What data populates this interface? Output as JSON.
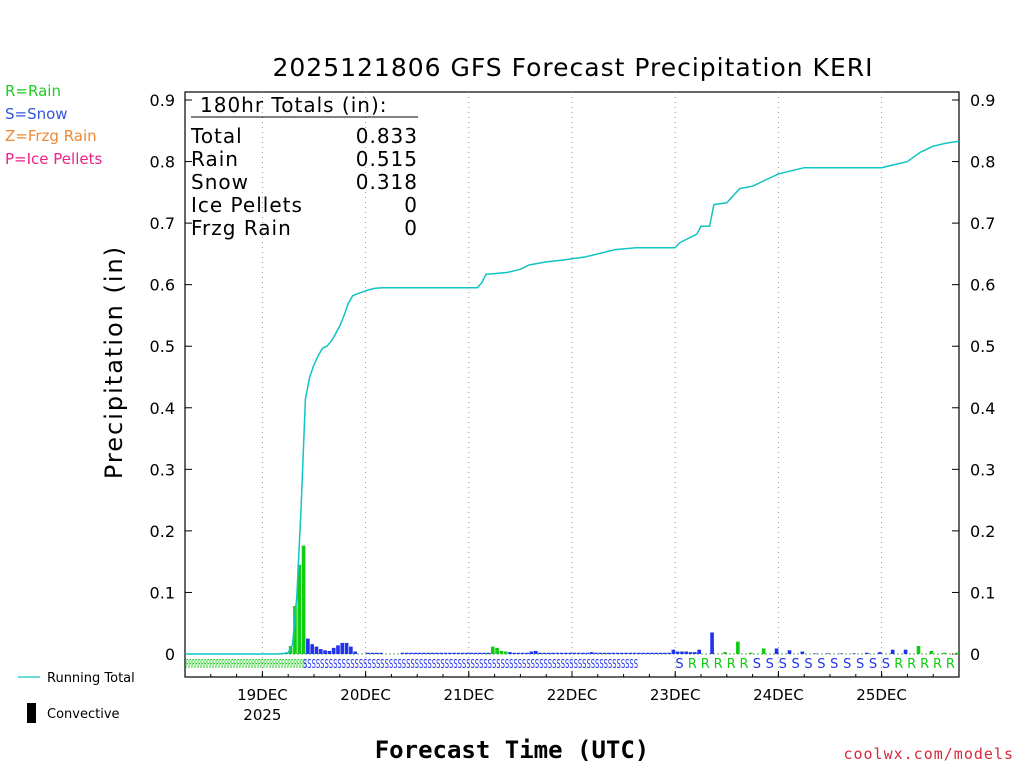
{
  "chart_data": {
    "type": "bar",
    "title": "2025121806 GFS Forecast Precipitation KERI",
    "xlabel": "Forecast Time (UTC)",
    "ylabel": "Precipitation (in)",
    "ylim": [
      0,
      0.9
    ],
    "yticks": [
      "0",
      "0.1",
      "0.2",
      "0.3",
      "0.4",
      "0.5",
      "0.6",
      "0.7",
      "0.8",
      "0.9"
    ],
    "xlim_hours": [
      0,
      180
    ],
    "x_unit": "forecast hours from 2025-12-18 06Z",
    "x_tick_labels": [
      {
        "hour": 18,
        "label": "19DEC",
        "sublabel": "2025"
      },
      {
        "hour": 42,
        "label": "20DEC",
        "sublabel": ""
      },
      {
        "hour": 66,
        "label": "21DEC",
        "sublabel": ""
      },
      {
        "hour": 90,
        "label": "22DEC",
        "sublabel": ""
      },
      {
        "hour": 114,
        "label": "23DEC",
        "sublabel": ""
      },
      {
        "hour": 138,
        "label": "24DEC",
        "sublabel": ""
      },
      {
        "hour": 162,
        "label": "25DEC",
        "sublabel": ""
      }
    ],
    "bar_series": {
      "hours": [
        24,
        25,
        26,
        27,
        28,
        29,
        30,
        31,
        32,
        33,
        34,
        35,
        36,
        37,
        38,
        39,
        40,
        43,
        44,
        45,
        46,
        51,
        52,
        53,
        54,
        55,
        56,
        57,
        58,
        59,
        60,
        61,
        62,
        63,
        64,
        65,
        66,
        67,
        68,
        69,
        70,
        71,
        72,
        73,
        74,
        75,
        76,
        77,
        78,
        79,
        80,
        81,
        82,
        83,
        84,
        85,
        86,
        87,
        88,
        89,
        90,
        91,
        92,
        93,
        94,
        95,
        96,
        97,
        98,
        99,
        100,
        101,
        102,
        103,
        104,
        105,
        106,
        107,
        108,
        109,
        110,
        111,
        112,
        113,
        114,
        115,
        116,
        117,
        118,
        119,
        120,
        123,
        126,
        129,
        132,
        135,
        138,
        141,
        144,
        147,
        150,
        153,
        156,
        159,
        162,
        165,
        168,
        171,
        174,
        177,
        180
      ],
      "values": [
        0.002,
        0.013,
        0.078,
        0.145,
        0.176,
        0.025,
        0.016,
        0.012,
        0.008,
        0.006,
        0.005,
        0.01,
        0.014,
        0.018,
        0.018,
        0.012,
        0.004,
        0.002,
        0.002,
        0.002,
        0.002,
        0.002,
        0.002,
        0.002,
        0.002,
        0.002,
        0.002,
        0.002,
        0.002,
        0.002,
        0.002,
        0.002,
        0.002,
        0.002,
        0.002,
        0.002,
        0.002,
        0.002,
        0.002,
        0.002,
        0.002,
        0.002,
        0.012,
        0.01,
        0.005,
        0.004,
        0.003,
        0.002,
        0.002,
        0.002,
        0.002,
        0.004,
        0.005,
        0.002,
        0.002,
        0.002,
        0.002,
        0.002,
        0.002,
        0.002,
        0.002,
        0.002,
        0.002,
        0.002,
        0.002,
        0.003,
        0.002,
        0.002,
        0.002,
        0.002,
        0.002,
        0.002,
        0.002,
        0.002,
        0.002,
        0.002,
        0.002,
        0.002,
        0.002,
        0.002,
        0.002,
        0.002,
        0.002,
        0.002,
        0.007,
        0.004,
        0.004,
        0.004,
        0.003,
        0.003,
        0.007,
        0.035,
        0.003,
        0.02,
        0.002,
        0.009,
        0.009,
        0.006,
        0.004,
        0.001,
        0.001,
        0.001,
        0.001,
        0.002,
        0.003,
        0.007,
        0.007,
        0.013,
        0.005,
        0.002,
        0.002
      ],
      "types": [
        "R",
        "R",
        "R",
        "R",
        "R",
        "S",
        "S",
        "S",
        "S",
        "S",
        "S",
        "S",
        "S",
        "S",
        "S",
        "S",
        "S",
        "S",
        "S",
        "S",
        "S",
        "S",
        "S",
        "S",
        "S",
        "S",
        "S",
        "S",
        "S",
        "S",
        "S",
        "S",
        "S",
        "S",
        "S",
        "S",
        "S",
        "S",
        "S",
        "S",
        "S",
        "S",
        "R",
        "R",
        "R",
        "R",
        "S",
        "S",
        "S",
        "S",
        "S",
        "S",
        "S",
        "S",
        "S",
        "S",
        "S",
        "S",
        "S",
        "S",
        "S",
        "S",
        "S",
        "S",
        "S",
        "S",
        "S",
        "S",
        "S",
        "S",
        "S",
        "S",
        "S",
        "S",
        "S",
        "S",
        "S",
        "S",
        "S",
        "S",
        "S",
        "S",
        "S",
        "S",
        "S",
        "S",
        "S",
        "S",
        "S",
        "S",
        "S",
        "S",
        "R",
        "R",
        "R",
        "R",
        "S",
        "S",
        "S",
        "S",
        "S",
        "S",
        "S",
        "S",
        "S",
        "S",
        "S",
        "R",
        "R",
        "R",
        "R"
      ]
    },
    "running_total": {
      "name": "Running Total",
      "hours": [
        0,
        22,
        24,
        25,
        26,
        27,
        28,
        29,
        30,
        31,
        32,
        33,
        34,
        35,
        36,
        37,
        38,
        39,
        40,
        42,
        44,
        46,
        48,
        54,
        60,
        66,
        68,
        69,
        70,
        72,
        75,
        78,
        80,
        84,
        88,
        90,
        93,
        96,
        100,
        105,
        108,
        111,
        114,
        115,
        117,
        119,
        120,
        122,
        123,
        126,
        129,
        132,
        135,
        138,
        141,
        144,
        150,
        156,
        162,
        165,
        168,
        171,
        174,
        177,
        180
      ],
      "values": [
        0,
        0,
        0.002,
        0.015,
        0.093,
        0.238,
        0.414,
        0.45,
        0.47,
        0.485,
        0.497,
        0.5,
        0.508,
        0.52,
        0.533,
        0.55,
        0.57,
        0.582,
        0.585,
        0.59,
        0.594,
        0.595,
        0.595,
        0.595,
        0.595,
        0.595,
        0.595,
        0.603,
        0.617,
        0.618,
        0.62,
        0.625,
        0.632,
        0.637,
        0.64,
        0.642,
        0.645,
        0.65,
        0.657,
        0.66,
        0.66,
        0.66,
        0.66,
        0.668,
        0.675,
        0.682,
        0.695,
        0.695,
        0.73,
        0.733,
        0.756,
        0.76,
        0.77,
        0.78,
        0.785,
        0.79,
        0.79,
        0.79,
        0.79,
        0.795,
        0.8,
        0.815,
        0.825,
        0.83,
        0.833
      ]
    },
    "type_letters_row1": "RRRRRRRRRRRRRRRRRRRRRRRRRRRRRRRRRRRRRRRR",
    "type_letters_row2": "SSSSSSSSSSSSSSSSSSSSSSSSSSSSSSSSSSSSSSSSSSSSSSSSSSSSSSSSSSSSSSSSSSSSSSSSSSSSSS",
    "sparse_type_letters": [
      {
        "hour": 115,
        "letter": "S"
      },
      {
        "hour": 118,
        "letter": "R"
      },
      {
        "hour": 121,
        "letter": "R"
      },
      {
        "hour": 124,
        "letter": "R"
      },
      {
        "hour": 127,
        "letter": "R"
      },
      {
        "hour": 130,
        "letter": "R"
      },
      {
        "hour": 133,
        "letter": "S"
      },
      {
        "hour": 136,
        "letter": "S"
      },
      {
        "hour": 139,
        "letter": "S"
      },
      {
        "hour": 142,
        "letter": "S"
      },
      {
        "hour": 145,
        "letter": "S"
      },
      {
        "hour": 148,
        "letter": "S"
      },
      {
        "hour": 151,
        "letter": "S"
      },
      {
        "hour": 154,
        "letter": "S"
      },
      {
        "hour": 157,
        "letter": "S"
      },
      {
        "hour": 160,
        "letter": "S"
      },
      {
        "hour": 163,
        "letter": "S"
      },
      {
        "hour": 166,
        "letter": "R"
      },
      {
        "hour": 169,
        "letter": "R"
      },
      {
        "hour": 172,
        "letter": "R"
      },
      {
        "hour": 175,
        "letter": "R"
      },
      {
        "hour": 178,
        "letter": "R"
      }
    ],
    "totals": {
      "heading": "180hr Totals (in):",
      "rows": [
        {
          "label": "Total",
          "value": "0.833"
        },
        {
          "label": "Rain",
          "value": "0.515"
        },
        {
          "label": "Snow",
          "value": "0.318"
        },
        {
          "label": "Ice Pellets",
          "value": "0"
        },
        {
          "label": "Frzg Rain",
          "value": "0"
        }
      ]
    },
    "type_legend": [
      {
        "label": "R=Rain",
        "color": "#22cc22"
      },
      {
        "label": "S=Snow",
        "color": "#3355dd"
      },
      {
        "label": "Z=Frzg Rain",
        "color": "#ee8833"
      },
      {
        "label": "P=Ice Pellets",
        "color": "#ee2288"
      }
    ],
    "line_legend_label": "Running Total",
    "bar_legend_label": "Convective",
    "colors": {
      "rain": "#11cc11",
      "snow": "#2233ee",
      "running_total": "#11c4c4",
      "axis": "#000000",
      "grid": "#999999"
    }
  },
  "credit": "coolwx.com/models"
}
